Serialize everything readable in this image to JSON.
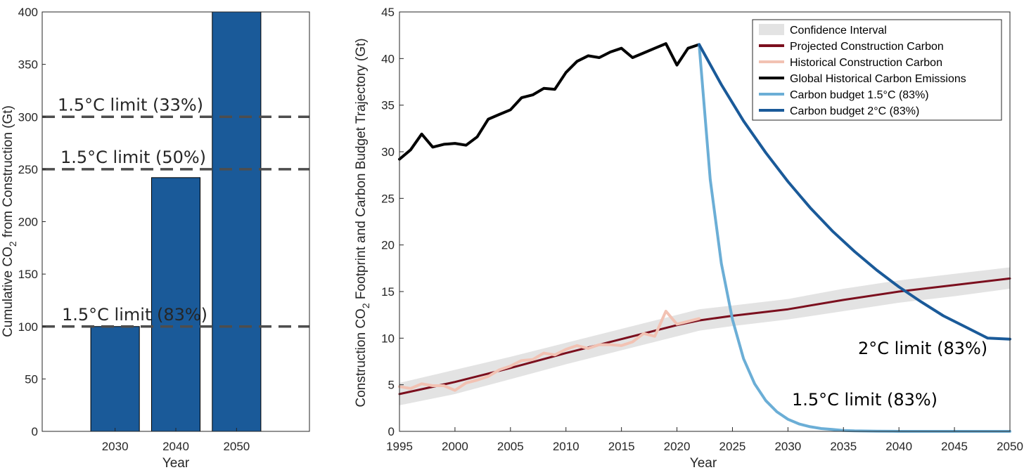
{
  "chart_data": [
    {
      "type": "bar",
      "xlabel": "Year",
      "ylabel": "Cumulative CO",
      "ylabel_sub": "2",
      "ylabel_rest": " from Construction (Gt)",
      "categories": [
        "2030",
        "2040",
        "2050"
      ],
      "values": [
        100,
        242,
        400
      ],
      "bar_color": "#1a5a99",
      "xlim": [
        2018,
        2062
      ],
      "ylim": [
        0,
        400
      ],
      "yticks": [
        0,
        50,
        100,
        150,
        200,
        250,
        300,
        350,
        400
      ],
      "reference_lines": [
        {
          "value": 300,
          "label": "1.5°C limit (33%)"
        },
        {
          "value": 250,
          "label": "1.5°C limit (50%)"
        },
        {
          "value": 100,
          "label": "1.5°C limit (83%)"
        }
      ]
    },
    {
      "type": "line",
      "xlabel": "Year",
      "ylabel": "Construction CO",
      "ylabel_sub": "2",
      "ylabel_rest": " Footprint and Carbon Budget Trajectory (Gt)",
      "xlim": [
        1995,
        2050
      ],
      "ylim": [
        0,
        45
      ],
      "xticks": [
        1995,
        2000,
        2005,
        2010,
        2015,
        2020,
        2025,
        2030,
        2035,
        2040,
        2045,
        2050
      ],
      "yticks": [
        0,
        5,
        10,
        15,
        20,
        25,
        30,
        35,
        40,
        45
      ],
      "series": [
        {
          "name": "Confidence Interval",
          "color": "#e3e3e3",
          "x": [
            1995,
            2000,
            2005,
            2010,
            2015,
            2020,
            2022,
            2025,
            2030,
            2035,
            2040,
            2045,
            2050
          ],
          "lower": [
            2.8,
            4.0,
            5.6,
            7.2,
            8.7,
            10.2,
            10.8,
            11.3,
            12.0,
            12.9,
            13.8,
            14.5,
            15.3
          ],
          "upper": [
            5.2,
            6.6,
            8.0,
            9.5,
            11.0,
            12.5,
            13.1,
            13.5,
            14.2,
            15.3,
            16.2,
            16.9,
            17.6
          ]
        },
        {
          "name": "Projected Construction Carbon",
          "color": "#7b0f1e",
          "x": [
            1995,
            2000,
            2005,
            2010,
            2015,
            2020,
            2022,
            2025,
            2030,
            2035,
            2040,
            2045,
            2050
          ],
          "values": [
            4.0,
            5.3,
            6.8,
            8.4,
            9.9,
            11.4,
            11.9,
            12.4,
            13.1,
            14.1,
            15.0,
            15.7,
            16.4
          ]
        },
        {
          "name": "Historical Construction Carbon",
          "color": "#f2c2b3",
          "x": [
            1995,
            1996,
            1997,
            1998,
            1999,
            2000,
            2001,
            2002,
            2003,
            2004,
            2005,
            2006,
            2007,
            2008,
            2009,
            2010,
            2011,
            2012,
            2013,
            2014,
            2015,
            2016,
            2017,
            2018,
            2019,
            2020,
            2021,
            2022
          ],
          "values": [
            4.8,
            4.6,
            5.1,
            4.9,
            4.9,
            4.4,
            5.2,
            5.5,
            5.9,
            6.6,
            7.0,
            7.6,
            7.7,
            8.4,
            8.2,
            8.8,
            9.2,
            8.9,
            9.3,
            9.3,
            9.2,
            9.6,
            10.5,
            10.2,
            12.9,
            11.5,
            11.8,
            12.1
          ]
        },
        {
          "name": "Global Historical Carbon Emissions",
          "color": "#000000",
          "x": [
            1995,
            1996,
            1997,
            1998,
            1999,
            2000,
            2001,
            2002,
            2003,
            2004,
            2005,
            2006,
            2007,
            2008,
            2009,
            2010,
            2011,
            2012,
            2013,
            2014,
            2015,
            2016,
            2017,
            2018,
            2019,
            2020,
            2021,
            2022
          ],
          "values": [
            29.2,
            30.2,
            31.9,
            30.5,
            30.8,
            30.9,
            30.7,
            31.6,
            33.5,
            34.0,
            34.5,
            35.8,
            36.1,
            36.8,
            36.7,
            38.5,
            39.7,
            40.3,
            40.1,
            40.7,
            41.1,
            40.1,
            40.6,
            41.1,
            41.6,
            39.3,
            41.1,
            41.5
          ]
        },
        {
          "name": "Carbon budget 1.5°C (83%)",
          "color": "#6baed6",
          "x": [
            2022,
            2023,
            2024,
            2025,
            2026,
            2027,
            2028,
            2029,
            2030,
            2031,
            2032,
            2033,
            2034,
            2035,
            2036,
            2038,
            2040,
            2045,
            2050
          ],
          "values": [
            41.5,
            27.0,
            18.0,
            12.0,
            7.8,
            5.1,
            3.3,
            2.1,
            1.3,
            0.8,
            0.5,
            0.3,
            0.2,
            0.1,
            0.05,
            0.02,
            0.0,
            0.0,
            0.0
          ]
        },
        {
          "name": "Carbon budget 2°C (83%)",
          "color": "#1a5a99",
          "x": [
            2022,
            2024,
            2026,
            2028,
            2030,
            2032,
            2034,
            2036,
            2038,
            2040,
            2042,
            2044,
            2046,
            2048,
            2050
          ],
          "values": [
            41.5,
            37.2,
            33.3,
            29.9,
            26.8,
            24.0,
            21.5,
            19.3,
            17.3,
            15.5,
            13.9,
            12.4,
            11.2,
            10.0,
            9.9
          ]
        }
      ],
      "annotations": [
        {
          "text": "2°C limit (83%)",
          "color": "#1a5a99"
        },
        {
          "text": "1.5°C limit (83%)",
          "color": "#6baed6"
        }
      ]
    }
  ]
}
